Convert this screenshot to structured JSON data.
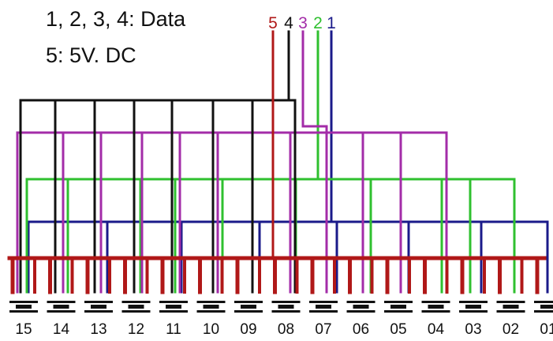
{
  "legend": {
    "data_line": "1, 2, 3, 4: Data",
    "power_line": "5: 5V. DC"
  },
  "wires": [
    {
      "label": "5",
      "color": "#b01818"
    },
    {
      "label": "4",
      "color": "#111111"
    },
    {
      "label": "3",
      "color": "#a32ca8"
    },
    {
      "label": "2",
      "color": "#2fc02f"
    },
    {
      "label": "1",
      "color": "#1a1a8a"
    }
  ],
  "sockets": [
    "15",
    "14",
    "13",
    "12",
    "11",
    "10",
    "09",
    "08",
    "07",
    "06",
    "05",
    "04",
    "03",
    "02",
    "01"
  ]
}
